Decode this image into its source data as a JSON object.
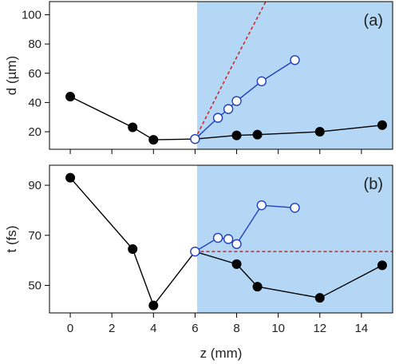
{
  "chart_data": [
    {
      "type": "line",
      "panel_label": "(a)",
      "xlabel": "z (mm)",
      "ylabel": "d (µm)",
      "xlim": [
        -1,
        15.5
      ],
      "ylim": [
        8,
        109
      ],
      "xticks": [
        0,
        2,
        4,
        6,
        8,
        10,
        12,
        14
      ],
      "yticks": [
        20,
        40,
        60,
        80,
        100
      ],
      "tick_labels": [
        "20",
        "40",
        "60",
        "80",
        "100"
      ],
      "shaded_region": {
        "x_from": 6.1,
        "x_to": 15.5,
        "color": "#b3d7f5"
      },
      "series": [
        {
          "color": "#000000",
          "marker": "filled-circle",
          "points": [
            {
              "x": 0,
              "y": 44
            },
            {
              "x": 3,
              "y": 23
            },
            {
              "x": 4,
              "y": 14.5
            },
            {
              "x": 6,
              "y": 15
            },
            {
              "x": 8,
              "y": 17.5
            },
            {
              "x": 9,
              "y": 18
            },
            {
              "x": 12,
              "y": 20
            },
            {
              "x": 15,
              "y": 24.5
            }
          ]
        },
        {
          "color": "#1f3fbf",
          "marker": "open-circle",
          "points": [
            {
              "x": 6,
              "y": 15
            },
            {
              "x": 7.1,
              "y": 29.5
            },
            {
              "x": 7.6,
              "y": 35.5
            },
            {
              "x": 8,
              "y": 41
            },
            {
              "x": 9.2,
              "y": 54.5
            },
            {
              "x": 10.8,
              "y": 69
            }
          ]
        },
        {
          "color": "#cc2222",
          "style": "dashed",
          "points": [
            {
              "x": 6,
              "y": 15
            },
            {
              "x": 7.6,
              "y": 60
            },
            {
              "x": 9.4,
              "y": 109
            }
          ]
        }
      ]
    },
    {
      "type": "line",
      "panel_label": "(b)",
      "xlabel": "z (mm)",
      "ylabel": "t (fs)",
      "xlim": [
        -1,
        15.5
      ],
      "ylim": [
        39,
        98
      ],
      "xticks": [
        0,
        2,
        4,
        6,
        8,
        10,
        12,
        14
      ],
      "tick_labels": [
        "0",
        "2",
        "4",
        "6",
        "8",
        "10",
        "12",
        "14"
      ],
      "yticks": [
        50,
        70,
        90
      ],
      "ytick_labels": [
        "50",
        "70",
        "90"
      ],
      "shaded_region": {
        "x_from": 6.1,
        "x_to": 15.5,
        "color": "#b3d7f5"
      },
      "series": [
        {
          "color": "#000000",
          "marker": "filled-circle",
          "points": [
            {
              "x": 0,
              "y": 93
            },
            {
              "x": 3,
              "y": 64.5
            },
            {
              "x": 4,
              "y": 42
            },
            {
              "x": 6,
              "y": 63.5
            },
            {
              "x": 8,
              "y": 58.5
            },
            {
              "x": 9,
              "y": 49.5
            },
            {
              "x": 12,
              "y": 45
            },
            {
              "x": 15,
              "y": 58
            }
          ]
        },
        {
          "color": "#1f3fbf",
          "marker": "open-circle",
          "points": [
            {
              "x": 6,
              "y": 63.5
            },
            {
              "x": 7.1,
              "y": 69
            },
            {
              "x": 7.6,
              "y": 68.5
            },
            {
              "x": 8,
              "y": 66.5
            },
            {
              "x": 9.2,
              "y": 82
            },
            {
              "x": 10.8,
              "y": 81
            }
          ]
        },
        {
          "color": "#cc2222",
          "style": "dashed",
          "points": [
            {
              "x": 6,
              "y": 63.5
            },
            {
              "x": 15.5,
              "y": 63.5
            }
          ]
        }
      ]
    }
  ]
}
